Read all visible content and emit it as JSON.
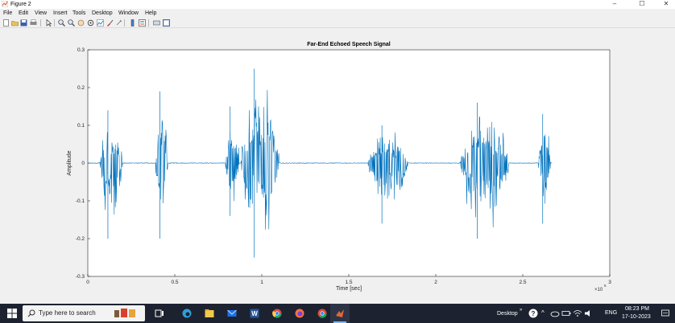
{
  "window": {
    "title": "Figure 2",
    "controls": {
      "minimize": "–",
      "maximize": "☐",
      "close": "✕"
    }
  },
  "menu": [
    "File",
    "Edit",
    "View",
    "Insert",
    "Tools",
    "Desktop",
    "Window",
    "Help"
  ],
  "toolbar": {
    "icons": [
      "new-figure-icon",
      "open-file-icon",
      "save-icon",
      "print-icon",
      "pointer-icon",
      "zoom-in-icon",
      "zoom-out-icon",
      "pan-icon",
      "rotate-3d-icon",
      "data-cursor-icon",
      "brush-icon",
      "link-icon",
      "insert-colorbar-icon",
      "insert-legend-icon",
      "hide-plot-tools-icon",
      "show-plot-tools-icon"
    ]
  },
  "chart_data": {
    "type": "line",
    "title": "Far-End Echoed Speech Signal",
    "xlabel": "Time [sec]",
    "ylabel": "Amplitude",
    "x_exponent_label": "×10",
    "x_exponent": "5",
    "xlim": [
      0,
      300000
    ],
    "ylim": [
      -0.3,
      0.3
    ],
    "xticks": [
      0,
      50000,
      100000,
      150000,
      200000,
      250000,
      300000
    ],
    "xtick_labels": [
      "0",
      "0.5",
      "1",
      "1.5",
      "2",
      "2.5",
      "3"
    ],
    "yticks": [
      -0.3,
      -0.2,
      -0.1,
      0,
      0.1,
      0.2,
      0.3
    ],
    "ytick_labels": [
      "-0.3",
      "-0.2",
      "-0.1",
      "0",
      "0.1",
      "0.2",
      "0.3"
    ],
    "grid": false,
    "color": "#0072bd",
    "signal_x_range": [
      0,
      267000
    ],
    "bursts": [
      {
        "x_start": 7000,
        "x_end": 20000,
        "peak_pos": 0.14,
        "peak_neg": -0.2
      },
      {
        "x_start": 39000,
        "x_end": 46000,
        "peak_pos": 0.19,
        "peak_neg": -0.2
      },
      {
        "x_start": 79000,
        "x_end": 87000,
        "peak_pos": 0.15,
        "peak_neg": -0.14
      },
      {
        "x_start": 88000,
        "x_end": 110000,
        "peak_pos": 0.25,
        "peak_neg": -0.25
      },
      {
        "x_start": 161000,
        "x_end": 184000,
        "peak_pos": 0.1,
        "peak_neg": -0.16
      },
      {
        "x_start": 214000,
        "x_end": 242000,
        "peak_pos": 0.16,
        "peak_neg": -0.2
      },
      {
        "x_start": 259000,
        "x_end": 266000,
        "peak_pos": 0.13,
        "peak_neg": -0.16
      }
    ]
  },
  "taskbar": {
    "search_placeholder": "Type here to search",
    "tray_desktop": "Desktop",
    "tray_lang": "ENG",
    "tray_time": "08:23 PM",
    "tray_date": "17-10-2023"
  }
}
